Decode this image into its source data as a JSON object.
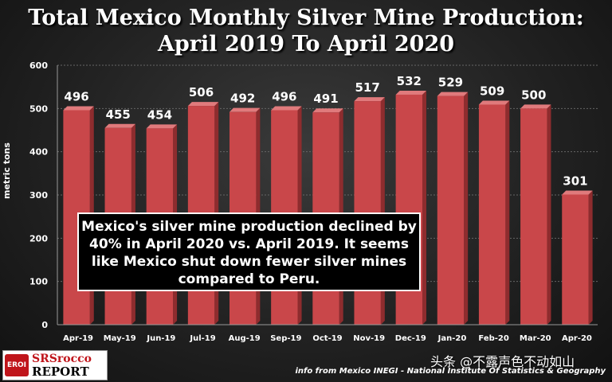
{
  "title_line1": "Total Mexico Monthly Silver Mine Production:",
  "title_line2": "April 2019 To April 2020",
  "annotation": "Mexico's silver mine production declined by 40% in April 2020 vs. April 2019.  It seems like Mexico shut down fewer silver mines compared to Peru.",
  "logo": {
    "badge": "EROI",
    "line1": "SRSrocco",
    "line2": "REPORT"
  },
  "source": "info from Mexico INEGI - National Institute Of Statistics & Geography",
  "watermark": "头条 @不露声色不动如山",
  "colors": {
    "bar": "#c9474a",
    "bar_side": "#8e2c2e",
    "bar_top": "#e07a7c",
    "grid": "#666666"
  },
  "chart_data": {
    "type": "bar",
    "title": "Total Mexico Monthly Silver Mine Production: April 2019 To April 2020",
    "ylabel": "metric tons",
    "xlabel": "",
    "ylim": [
      0,
      600
    ],
    "yticks": [
      0,
      100,
      200,
      300,
      400,
      500,
      600
    ],
    "grid": true,
    "categories": [
      "Apr-19",
      "May-19",
      "Jun-19",
      "Jul-19",
      "Aug-19",
      "Sep-19",
      "Oct-19",
      "Nov-19",
      "Dec-19",
      "Jan-20",
      "Feb-20",
      "Mar-20",
      "Apr-20"
    ],
    "values": [
      496,
      455,
      454,
      506,
      492,
      496,
      491,
      517,
      532,
      529,
      509,
      500,
      301
    ]
  }
}
